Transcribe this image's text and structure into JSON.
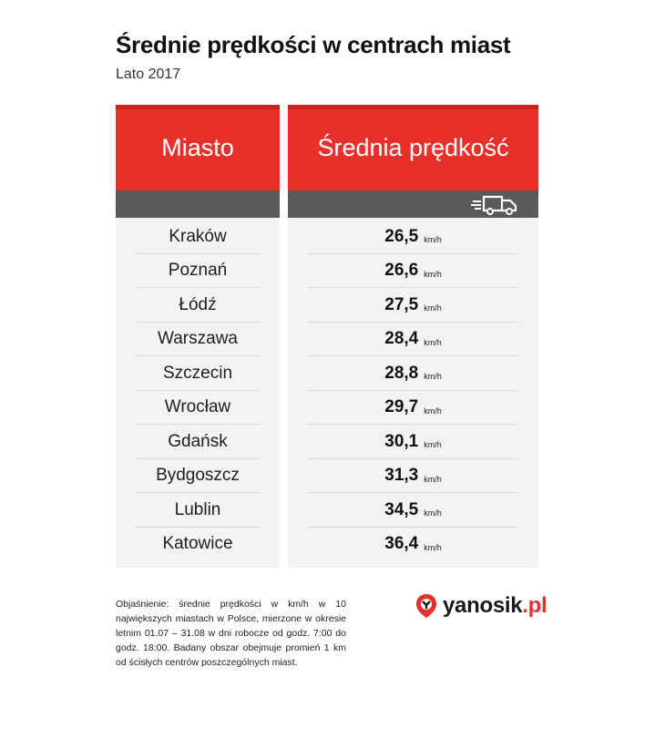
{
  "title": "Średnie prędkości w centrach miast",
  "subtitle": "Lato 2017",
  "table": {
    "header_city": "Miasto",
    "header_speed": "Średnia prędkość",
    "unit": "km/h",
    "rows": [
      {
        "city": "Kraków",
        "speed": "26,5"
      },
      {
        "city": "Poznań",
        "speed": "26,6"
      },
      {
        "city": "Łódź",
        "speed": "27,5"
      },
      {
        "city": "Warszawa",
        "speed": "28,4"
      },
      {
        "city": "Szczecin",
        "speed": "28,8"
      },
      {
        "city": "Wrocław",
        "speed": "29,7"
      },
      {
        "city": "Gdańsk",
        "speed": "30,1"
      },
      {
        "city": "Bydgoszcz",
        "speed": "31,3"
      },
      {
        "city": "Lublin",
        "speed": "34,5"
      },
      {
        "city": "Katowice",
        "speed": "36,4"
      }
    ]
  },
  "note": "Objaśnienie: średnie prędkości w km/h w 10 największych miastach w Polsce, mierzone w okresie letnim 01.07 – 31.08 w dni robocze od godz. 7:00 do godz. 18:00. Badany obszar obejmuje promień 1 km od ścisłych centrów poszczególnych miast.",
  "logo": {
    "name": "yanosik",
    "suffix": ".pl",
    "icon": "yanosik-logo-icon"
  },
  "colors": {
    "accent": "#e8302a",
    "subbar": "#5a5a5a",
    "table_bg": "#f3f3f3"
  }
}
